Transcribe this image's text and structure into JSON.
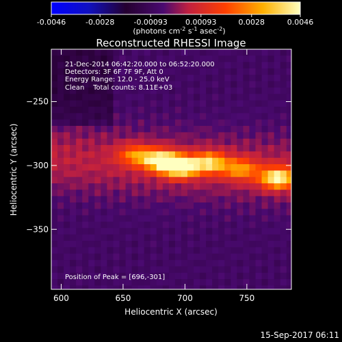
{
  "colorbar": {
    "tick_labels": [
      "-0.0046",
      "-0.0028",
      "-0.00093",
      "0.00093",
      "0.0028",
      "0.0046"
    ],
    "tick_values": [
      -0.0046,
      -0.0028,
      -0.00093,
      0.00093,
      0.0028,
      0.0046
    ],
    "range": [
      -0.0046,
      0.0046
    ],
    "units_label": "(photons cm",
    "units_parts": [
      "(photons cm",
      "-2",
      " s",
      "-1",
      " asec",
      "-2",
      ")"
    ]
  },
  "chart_data": {
    "type": "heatmap",
    "title": "Reconstructed RHESSI Image",
    "xlabel": "Heliocentric X (arcsec)",
    "ylabel": "Heliocentric Y (arcsec)",
    "xlim": [
      592,
      786
    ],
    "ylim": [
      -397,
      -209
    ],
    "x_ticks": [
      600,
      650,
      700,
      750
    ],
    "y_ticks": [
      -250,
      -300,
      -350
    ],
    "x_tick_labels": [
      "600",
      "650",
      "700",
      "750"
    ],
    "y_tick_labels": [
      "−250",
      "−300",
      "−350"
    ],
    "sources": [
      {
        "x": 696,
        "y": -301,
        "peak": 1.0
      },
      {
        "x": 680,
        "y": -296,
        "peak": 0.82
      },
      {
        "x": 720,
        "y": -298,
        "peak": 0.7
      },
      {
        "x": 775,
        "y": -310,
        "peak": 0.85
      },
      {
        "x": 660,
        "y": -292,
        "peak": 0.45
      },
      {
        "x": 745,
        "y": -303,
        "peak": 0.5
      }
    ],
    "annotations": [
      "21-Dec-2014 06:42:20.000 to 06:52:20.000",
      "Detectors: 3F 6F 7F 9F, Att 0",
      "Energy Range: 12.0 - 25.0 keV",
      "Clean    Total counts: 8.11E+03"
    ],
    "peak_label": "Position of Peak = [696,-301]"
  },
  "footer": {
    "timestamp": "15-Sep-2017 06:11"
  },
  "colors": {
    "background": "#000000",
    "foreground": "#ffffff"
  }
}
